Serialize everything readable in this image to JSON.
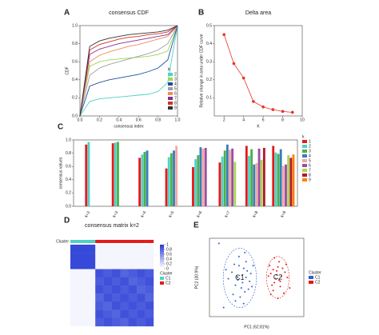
{
  "chart_data": [
    {
      "type": "line",
      "panel": "A",
      "title": "consensus CDF",
      "xlabel": "consensus index",
      "ylabel": "CDF",
      "x": [
        0,
        0.1,
        0.2,
        0.3,
        0.4,
        0.5,
        0.6,
        0.7,
        0.8,
        0.9,
        1.0
      ],
      "xlim": [
        0,
        1
      ],
      "xticks": [
        {
          "value": 0,
          "label": "0.0"
        },
        0.2,
        0.4,
        0.6,
        0.8,
        {
          "value": 1,
          "label": "1.0"
        }
      ],
      "ylim": [
        0,
        1
      ],
      "yticks": [
        {
          "value": 0,
          "label": "0.0"
        },
        0.2,
        0.4,
        0.6,
        0.8,
        {
          "value": 1,
          "label": "1.0"
        }
      ],
      "legend_title": "K",
      "legend": "lower-right",
      "markers": false,
      "series": [
        {
          "name": "2",
          "color": "#4fd1c5",
          "values": [
            0,
            0.16,
            0.19,
            0.2,
            0.21,
            0.22,
            0.23,
            0.24,
            0.27,
            0.37,
            1
          ]
        },
        {
          "name": "3",
          "color": "#9bd84f",
          "values": [
            0,
            0.55,
            0.6,
            0.62,
            0.63,
            0.64,
            0.65,
            0.66,
            0.68,
            0.72,
            1
          ]
        },
        {
          "name": "4",
          "color": "#1f4e9c",
          "values": [
            0,
            0.33,
            0.37,
            0.4,
            0.42,
            0.44,
            0.46,
            0.49,
            0.53,
            0.62,
            1
          ]
        },
        {
          "name": "5",
          "color": "#a0a0a0",
          "values": [
            0,
            0.45,
            0.53,
            0.57,
            0.6,
            0.63,
            0.66,
            0.69,
            0.73,
            0.8,
            1
          ]
        },
        {
          "name": "6",
          "color": "#f08a5d",
          "values": [
            0,
            0.6,
            0.67,
            0.71,
            0.74,
            0.77,
            0.79,
            0.82,
            0.85,
            0.88,
            1
          ]
        },
        {
          "name": "7",
          "color": "#7b3294",
          "values": [
            0,
            0.68,
            0.74,
            0.77,
            0.8,
            0.82,
            0.84,
            0.86,
            0.88,
            0.9,
            1
          ]
        },
        {
          "name": "8",
          "color": "#d7301f",
          "values": [
            0,
            0.73,
            0.79,
            0.82,
            0.85,
            0.87,
            0.88,
            0.9,
            0.91,
            0.93,
            1
          ]
        },
        {
          "name": "9",
          "color": "#333333",
          "values": [
            0,
            0.77,
            0.83,
            0.86,
            0.88,
            0.9,
            0.91,
            0.92,
            0.93,
            0.95,
            1
          ]
        }
      ]
    },
    {
      "type": "line",
      "panel": "B",
      "title": "Delta area",
      "xlabel": "K",
      "ylabel": "Relative change in area under CDF curve",
      "x": [
        2,
        3,
        4,
        5,
        6,
        7,
        8,
        9
      ],
      "xlim": [
        1,
        10
      ],
      "xticks": [
        2,
        4,
        6,
        8,
        10
      ],
      "ylim": [
        0,
        0.5
      ],
      "yticks": [
        0.1,
        0.2,
        0.3,
        0.4,
        0.5
      ],
      "markers": true,
      "series": [
        {
          "color": "#e8332a",
          "values": [
            0.45,
            0.29,
            0.21,
            0.08,
            0.05,
            0.035,
            0.025,
            0.02
          ]
        }
      ]
    },
    {
      "type": "bar",
      "panel": "C",
      "ylabel": "consensus values",
      "categories": [
        "k=2",
        "k=3",
        "k=4",
        "k=5",
        "k=6",
        "k=7",
        "k=8",
        "k=9"
      ],
      "ylim": [
        0,
        1
      ],
      "yticks": [
        {
          "value": 0,
          "label": "0.0"
        },
        0.2,
        0.4,
        0.6,
        0.8,
        {
          "value": 1,
          "label": "1.0"
        }
      ],
      "legend_title": "k",
      "legend": "right",
      "series": [
        {
          "name": "1",
          "color": "#e41a1c",
          "values": [
            0.93,
            0.95,
            0.73,
            0.57,
            0.59,
            0.66,
            0.91,
            0.91
          ]
        },
        {
          "name": "2",
          "color": "#4fd1c5",
          "values": [
            0.97,
            0.96,
            0.78,
            0.74,
            0.71,
            0.75,
            0.76,
            0.81
          ]
        },
        {
          "name": "3",
          "color": "#4daf4a",
          "values": [
            null,
            0.97,
            0.82,
            0.8,
            0.77,
            0.84,
            0.86,
            0.79
          ]
        },
        {
          "name": "4",
          "color": "#377eb8",
          "values": [
            null,
            null,
            0.84,
            0.84,
            0.89,
            0.93,
            0.63,
            0.86
          ]
        },
        {
          "name": "5",
          "color": "#f4a6a6",
          "values": [
            null,
            null,
            null,
            0.91,
            0.87,
            0.85,
            0.65,
            0.61
          ]
        },
        {
          "name": "6",
          "color": "#984ea3",
          "values": [
            null,
            null,
            null,
            null,
            0.88,
            0.87,
            0.87,
            0.63
          ]
        },
        {
          "name": "7",
          "color": "#a6d854",
          "values": [
            null,
            null,
            null,
            null,
            null,
            0.67,
            0.7,
            0.77
          ]
        },
        {
          "name": "8",
          "color": "#b2182b",
          "values": [
            null,
            null,
            null,
            null,
            null,
            null,
            0.88,
            0.73
          ]
        },
        {
          "name": "9",
          "color": "#ff7f00",
          "values": [
            null,
            null,
            null,
            null,
            null,
            null,
            null,
            0.78
          ]
        }
      ]
    },
    {
      "type": "heatmap",
      "panel": "D",
      "title": "consensus matrix k=2",
      "matrix": [
        [
          0.95,
          0.95,
          0.95,
          0.05,
          0.05,
          0.05,
          0.05,
          0.05,
          0.05,
          0.05
        ],
        [
          0.95,
          0.95,
          0.95,
          0.05,
          0.05,
          0.05,
          0.05,
          0.05,
          0.05,
          0.05
        ],
        [
          0.95,
          0.95,
          0.95,
          0.05,
          0.05,
          0.05,
          0.05,
          0.05,
          0.05,
          0.05
        ],
        [
          0.05,
          0.05,
          0.05,
          0.9,
          0.85,
          0.9,
          0.8,
          0.85,
          0.9,
          0.85
        ],
        [
          0.05,
          0.05,
          0.05,
          0.85,
          0.9,
          0.85,
          0.9,
          0.8,
          0.85,
          0.9
        ],
        [
          0.05,
          0.05,
          0.05,
          0.9,
          0.85,
          0.9,
          0.85,
          0.9,
          0.8,
          0.85
        ],
        [
          0.05,
          0.05,
          0.05,
          0.8,
          0.9,
          0.85,
          0.9,
          0.85,
          0.9,
          0.8
        ],
        [
          0.05,
          0.05,
          0.05,
          0.85,
          0.8,
          0.9,
          0.85,
          0.9,
          0.85,
          0.9
        ],
        [
          0.05,
          0.05,
          0.05,
          0.9,
          0.85,
          0.8,
          0.9,
          0.85,
          0.9,
          0.85
        ],
        [
          0.05,
          0.05,
          0.05,
          0.85,
          0.9,
          0.85,
          0.8,
          0.9,
          0.85,
          0.9
        ]
      ],
      "clusters": [
        0,
        0,
        0,
        1,
        1,
        1,
        1,
        1,
        1,
        1
      ],
      "cluster_title": "Cluster",
      "cluster_names": [
        "C1",
        "C2"
      ],
      "cluster_colors": [
        "#4fd1c5",
        "#e41a1c"
      ],
      "low_color": "#ffffff",
      "high_color": "#2b3fd6",
      "clim": [
        0,
        1
      ],
      "cticks": [
        0,
        0.2,
        0.4,
        0.6,
        0.8,
        1
      ]
    },
    {
      "type": "scatter",
      "panel": "E",
      "xlabel": "PC1 (62.81%)",
      "ylabel": "PC2 (30.9%)",
      "xlim": [
        -4,
        4
      ],
      "ylim": [
        -3,
        3
      ],
      "legend_title": "Cluster",
      "legend": "right",
      "ellipses": true,
      "series": [
        {
          "name": "C1",
          "color": "#2b5fd6",
          "x": [
            -2.1,
            -1.8,
            -1.5,
            -1.2,
            -1.0,
            -0.8,
            -1.6,
            -1.3,
            -0.9,
            -0.6,
            -2.4,
            -1.9,
            -1.1,
            -0.7,
            -1.4,
            -1.7,
            -0.5,
            -2.0,
            -1.2,
            -0.9,
            -1.5,
            -0.4,
            -2.6,
            -1.0,
            -1.8,
            -3.2,
            -2.8,
            -0.3,
            -1.6,
            -1.1
          ],
          "values": [
            0.4,
            -0.6,
            0.9,
            0.2,
            -1.1,
            0.5,
            -0.2,
            -0.8,
            1.2,
            -0.3,
            -0.1,
            1.0,
            0.7,
            -0.9,
            -1.5,
            0.1,
            0.3,
            -1.3,
            -0.4,
            0.0,
            1.6,
            -0.7,
            0.6,
            1.9,
            -1.8,
            2.6,
            -2.3,
            0.9,
            0.0,
            -2.0
          ]
        },
        {
          "name": "C2",
          "color": "#e41a1c",
          "x": [
            1.2,
            1.5,
            1.8,
            2.1,
            1.4,
            1.7,
            2.0,
            2.4,
            1.1,
            1.6,
            1.9,
            2.3,
            1.3,
            2.6,
            1.0,
            1.8,
            2.2,
            1.5,
            2.0,
            1.7,
            2.8,
            1.2,
            2.5,
            1.9,
            1.4
          ],
          "values": [
            0.3,
            -0.4,
            0.8,
            0.1,
            -1.0,
            0.5,
            -0.7,
            0.4,
            0.9,
            -0.1,
            1.2,
            -1.2,
            -0.6,
            0.0,
            0.1,
            -1.6,
            0.7,
            1.5,
            -0.3,
            0.2,
            -0.8,
            -1.3,
            1.0,
            -0.2,
            0.6
          ]
        }
      ]
    }
  ]
}
